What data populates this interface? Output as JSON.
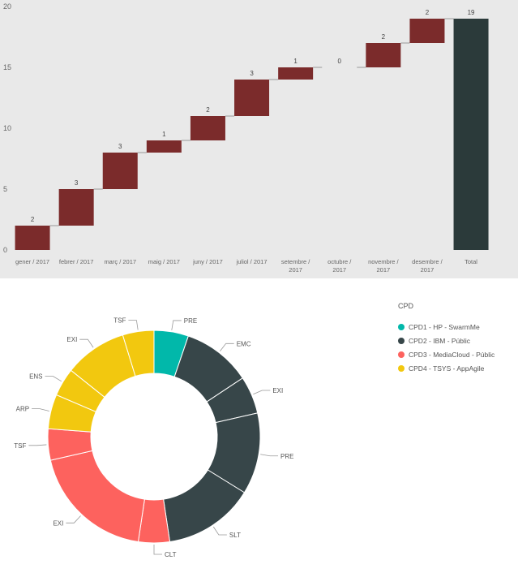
{
  "chart_data": [
    {
      "type": "waterfall",
      "title": "",
      "xlabel": "",
      "ylabel": "",
      "ylim": [
        0,
        20
      ],
      "yticks": [
        0,
        5,
        10,
        15,
        20
      ],
      "categories": [
        "gener / 2017",
        "febrer / 2017",
        "març / 2017",
        "maig / 2017",
        "juny / 2017",
        "juliol / 2017",
        "setembre / 2017",
        "octubre / 2017",
        "novembre / 2017",
        "desembre / 2017"
      ],
      "values": [
        2,
        3,
        3,
        1,
        2,
        3,
        1,
        0,
        2,
        2
      ],
      "total_label": "Total",
      "total_value": 19,
      "colors": {
        "increase": "#7b2b2b",
        "total": "#2b3a3a",
        "connector": "#999999",
        "background": "#e9e9e9"
      }
    },
    {
      "type": "pie",
      "subtype": "donut",
      "legend_title": "CPD",
      "legend_position": "top-right",
      "series": [
        {
          "name": "CPD1 - HP - SwarmMe",
          "color": "#01b8aa"
        },
        {
          "name": "CPD2 - IBM - Públic",
          "color": "#374649"
        },
        {
          "name": "CPD3 - MediaCloud - Públic",
          "color": "#fd625e"
        },
        {
          "name": "CPD4 - TSYS - AppAgile",
          "color": "#f2c80f"
        }
      ],
      "slices": [
        {
          "label": "PRE",
          "series": 0,
          "value": 5.5
        },
        {
          "label": "EMC",
          "series": 1,
          "value": 11
        },
        {
          "label": "EXI",
          "series": 1,
          "value": 6
        },
        {
          "label": "PRE",
          "series": 1,
          "value": 13
        },
        {
          "label": "SLT",
          "series": 1,
          "value": 14.5
        },
        {
          "label": "CLT",
          "series": 2,
          "value": 5
        },
        {
          "label": "EXI",
          "series": 2,
          "value": 20
        },
        {
          "label": "TSF",
          "series": 2,
          "value": 5
        },
        {
          "label": "ARP",
          "series": 3,
          "value": 5.5
        },
        {
          "label": "ENS",
          "series": 3,
          "value": 4.5
        },
        {
          "label": "EXI",
          "series": 3,
          "value": 10
        },
        {
          "label": "TSF",
          "series": 3,
          "value": 5
        }
      ]
    }
  ]
}
